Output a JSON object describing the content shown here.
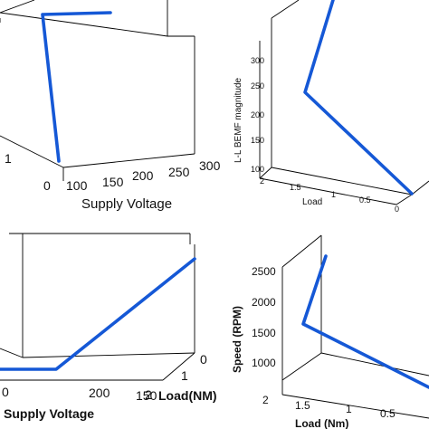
{
  "chart_data": [
    {
      "type": "line",
      "panel": "top-left",
      "projection": "3d",
      "title": "",
      "xlabel": "Supply Voltage",
      "ylabel": "",
      "zlabel": "",
      "x_ticks": [
        "100",
        "150",
        "200",
        "250",
        "300"
      ],
      "y_ticks": [
        "0",
        "1"
      ],
      "z_ticks": [],
      "series": [
        {
          "points": [
            {
              "supply_voltage": 115,
              "load": 0.1,
              "z": "low"
            },
            {
              "supply_voltage": 100,
              "load": 1.9,
              "z": "high"
            },
            {
              "supply_voltage": 180,
              "load": 1.9,
              "z": "high"
            }
          ]
        }
      ],
      "grid": false
    },
    {
      "type": "line",
      "panel": "top-right",
      "projection": "3d",
      "title": "",
      "xlabel": "Load",
      "ylabel": "",
      "zlabel": "L-L BEMF magnitude",
      "x_ticks": [
        "2",
        "1.5",
        "1",
        "0.5",
        "0"
      ],
      "z_ticks": [
        "100",
        "150",
        "200",
        "250",
        "300"
      ],
      "series": [
        {
          "points": [
            {
              "load": 0.0,
              "bemf": 105
            },
            {
              "load": 1.0,
              "bemf": 240
            },
            {
              "load": 2.0,
              "bemf": 330
            }
          ]
        }
      ],
      "grid": false
    },
    {
      "type": "line",
      "panel": "bottom-left",
      "projection": "3d",
      "title": "",
      "xlabel": "Supply Voltage",
      "ylabel": "Load(NM)",
      "zlabel": "",
      "x_ticks": [
        "0",
        "200",
        "150"
      ],
      "y_ticks": [
        "0",
        "1",
        "2"
      ],
      "z_ticks": [],
      "series": [
        {
          "points": [
            {
              "supply_voltage": 260,
              "load": 2,
              "z": "low"
            },
            {
              "supply_voltage": 180,
              "load": 2,
              "z": "low"
            },
            {
              "supply_voltage": 100,
              "load": 0,
              "z": "high"
            }
          ]
        }
      ],
      "grid": false
    },
    {
      "type": "line",
      "panel": "bottom-right",
      "projection": "3d",
      "title": "",
      "xlabel": "Load (Nm)",
      "ylabel": "",
      "zlabel": "Speed (RPM)",
      "x_ticks": [
        "2",
        "1.5",
        "1",
        "0.5"
      ],
      "z_ticks": [
        "1000",
        "1500",
        "2000",
        "2500"
      ],
      "series": [
        {
          "points": [
            {
              "load": 2.0,
              "speed": 2600
            },
            {
              "load": 1.5,
              "speed": 1650
            },
            {
              "load": 0.0,
              "speed": 950
            }
          ]
        }
      ],
      "grid": false
    }
  ],
  "colors": {
    "line": "#1558d6",
    "axes": "#000000"
  }
}
